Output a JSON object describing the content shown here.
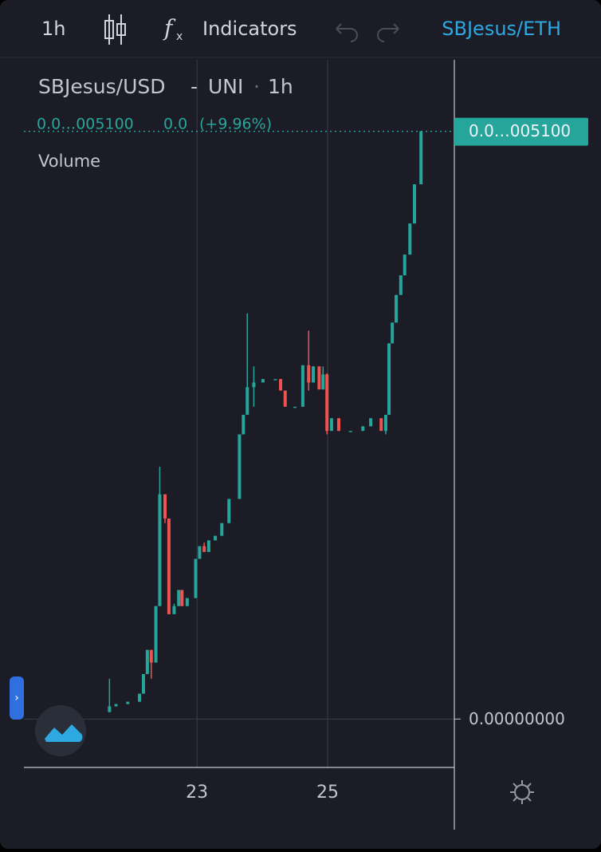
{
  "toolbar": {
    "interval": "1h",
    "indicators": "Indicators",
    "compare_symbol": "SBJesus/ETH"
  },
  "legend": {
    "symbol": "SBJesus/USD",
    "exchange": "UNI",
    "interval": "1h",
    "change": "0.0",
    "change_percent": "(+9.96%)",
    "volume": "Volume"
  },
  "chart_data": {
    "type": "candlestick",
    "x": [
      21.66,
      21.76,
      21.94,
      22.12,
      22.18,
      22.24,
      22.3,
      22.37,
      22.43,
      22.51,
      22.57,
      22.65,
      22.72,
      22.77,
      22.85,
      22.98,
      23.04,
      23.11,
      23.18,
      23.28,
      23.38,
      23.49,
      23.65,
      23.71,
      23.77,
      23.87,
      24.01,
      24.2,
      24.28,
      24.35,
      24.5,
      24.62,
      24.71,
      24.78,
      24.87,
      24.93,
      24.99,
      25.06,
      25.17,
      25.35,
      25.54,
      25.66,
      25.82,
      25.89,
      25.94,
      25.99,
      26.05,
      26.12,
      26.18,
      26.26,
      26.33,
      26.43
    ],
    "open": [
      6e-14,
      1.1e-13,
      1.3e-13,
      1.5e-13,
      2.2e-13,
      3.9e-13,
      6e-13,
      4.9e-13,
      9.8e-13,
      1.95e-12,
      1.74e-12,
      9.1e-13,
      9.8e-13,
      1.12e-12,
      9.8e-13,
      1.05e-12,
      1.39e-12,
      1.5e-12,
      1.45e-12,
      1.55e-12,
      1.59e-12,
      1.7e-12,
      1.91e-12,
      2.47e-12,
      2.64e-12,
      2.88e-12,
      2.92e-12,
      2.95e-12,
      2.95e-12,
      2.85e-12,
      2.71e-12,
      2.71e-12,
      3.07e-12,
      2.92e-12,
      3.06e-12,
      2.86e-12,
      2.99e-12,
      2.5e-12,
      2.61e-12,
      2.5e-12,
      2.5e-12,
      2.54e-12,
      2.61e-12,
      2.5e-12,
      2.64e-12,
      3.26e-12,
      3.44e-12,
      3.68e-12,
      3.85e-12,
      4.03e-12,
      4.3e-12,
      4.64e-12
    ],
    "high": [
      3.5e-13,
      1.3e-13,
      1.5e-13,
      2.2e-13,
      3.9e-13,
      6e-13,
      6e-13,
      9.8e-13,
      2.19e-12,
      1.95e-12,
      1.74e-12,
      1e-12,
      1.12e-12,
      1.12e-12,
      1.05e-12,
      1.39e-12,
      1.5e-12,
      1.53e-12,
      1.55e-12,
      1.59e-12,
      1.7e-12,
      1.91e-12,
      2.47e-12,
      2.64e-12,
      3.52e-12,
      3.06e-12,
      2.95e-12,
      2.95e-12,
      2.95e-12,
      2.85e-12,
      2.71e-12,
      3.07e-12,
      3.37e-12,
      3.06e-12,
      3.06e-12,
      3.06e-12,
      3e-12,
      2.61e-12,
      2.61e-12,
      2.5e-12,
      2.54e-12,
      2.61e-12,
      2.61e-12,
      2.64e-12,
      3.26e-12,
      3.44e-12,
      3.68e-12,
      3.85e-12,
      4.03e-12,
      4.3e-12,
      4.64e-12,
      5.1e-12
    ],
    "low": [
      6e-14,
      1.1e-13,
      1.3e-13,
      1.5e-13,
      2.2e-13,
      3.9e-13,
      3.5e-13,
      4.9e-13,
      9.8e-13,
      1.7e-12,
      9.1e-13,
      9.1e-13,
      9.8e-13,
      9.8e-13,
      9.8e-13,
      1.05e-12,
      1.39e-12,
      1.45e-12,
      1.45e-12,
      1.55e-12,
      1.59e-12,
      1.7e-12,
      1.91e-12,
      2.47e-12,
      2.64e-12,
      2.71e-12,
      2.92e-12,
      2.95e-12,
      2.85e-12,
      2.71e-12,
      2.71e-12,
      2.71e-12,
      2.85e-12,
      2.92e-12,
      2.86e-12,
      2.86e-12,
      2.47e-12,
      2.5e-12,
      2.5e-12,
      2.5e-12,
      2.5e-12,
      2.54e-12,
      2.5e-12,
      2.47e-12,
      2.64e-12,
      3.26e-12,
      3.44e-12,
      3.68e-12,
      3.85e-12,
      4.03e-12,
      4.3e-12,
      4.64e-12
    ],
    "close": [
      1.1e-13,
      1.3e-13,
      1.5e-13,
      2.2e-13,
      3.9e-13,
      6e-13,
      4.9e-13,
      9.8e-13,
      1.95e-12,
      1.74e-12,
      9.1e-13,
      9.8e-13,
      1.12e-12,
      9.8e-13,
      1.05e-12,
      1.39e-12,
      1.5e-12,
      1.45e-12,
      1.55e-12,
      1.59e-12,
      1.7e-12,
      1.91e-12,
      2.47e-12,
      2.64e-12,
      2.88e-12,
      2.92e-12,
      2.95e-12,
      2.95e-12,
      2.85e-12,
      2.71e-12,
      2.71e-12,
      3.07e-12,
      2.92e-12,
      3.06e-12,
      2.86e-12,
      2.99e-12,
      2.5e-12,
      2.61e-12,
      2.5e-12,
      2.5e-12,
      2.54e-12,
      2.61e-12,
      2.5e-12,
      2.64e-12,
      3.26e-12,
      3.44e-12,
      3.68e-12,
      3.85e-12,
      4.03e-12,
      4.3e-12,
      4.64e-12,
      5.1e-12
    ],
    "xlim": [
      20.35,
      26.94
    ],
    "xticks": [
      23,
      25
    ],
    "ylim": [
      -4.2e-13,
      5.72e-12
    ],
    "yticks": [
      {
        "value": 0,
        "label": "0.00000000"
      }
    ],
    "last_price": {
      "value": 5.1e-12,
      "label": "0.0…005100"
    },
    "up_color": "#26a69a",
    "down_color": "#ef5350",
    "grid": true
  }
}
